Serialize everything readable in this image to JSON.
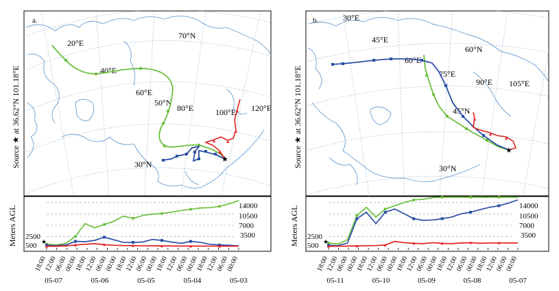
{
  "panels": [
    {
      "id": "a",
      "label": "a.",
      "source_label": "Source ★ at 36.62°N 101.18°E",
      "map_labels": [
        "20°E",
        "40°E",
        "60°E",
        "70°N",
        "50°N",
        "80°E",
        "100°E",
        "120°E",
        "30°N"
      ],
      "y_axis_label": "Meters AGL",
      "height_ticks": [
        "14000",
        "10500",
        "7000",
        "3500"
      ],
      "left_height_ticks": [
        "2500",
        "500"
      ],
      "time_ticks": [
        "18:00",
        "12:00",
        "06:00",
        "00:00",
        "18:00",
        "12:00",
        "06:00",
        "00:00",
        "18:00",
        "12:00",
        "06:00",
        "00:00",
        "18:00",
        "12:00",
        "06:00",
        "00:00",
        "18:00",
        "12:00",
        "06:00",
        "00:00"
      ],
      "date_ticks": [
        "05-07",
        "05-06",
        "05-05",
        "05-04",
        "05-03"
      ],
      "series": [
        {
          "name": "green",
          "color": "#6abf3c",
          "height_values": [
            1200,
            900,
            1400,
            3500,
            7500,
            6200,
            7200,
            8200,
            9800,
            9100,
            10000,
            10400,
            10600,
            11000,
            11500,
            11900,
            12300,
            12400,
            12800,
            13600,
            14600
          ]
        },
        {
          "name": "blue",
          "color": "#2b4ea6",
          "height_values": [
            800,
            700,
            900,
            2000,
            1900,
            2300,
            3300,
            2500,
            1700,
            1700,
            1800,
            2600,
            2300,
            1800,
            1400,
            2000,
            1700,
            1100,
            900,
            800,
            600
          ]
        },
        {
          "name": "red",
          "color": "#e02020",
          "height_values": [
            500,
            500,
            600,
            900,
            1100,
            1300,
            1000,
            800,
            700,
            700,
            650,
            600,
            600,
            580,
            560,
            550,
            550,
            540,
            530,
            520,
            510
          ]
        }
      ]
    },
    {
      "id": "b",
      "label": "b.",
      "source_label": "Source ★ at 36.62°N 101.18°E",
      "map_labels": [
        "30°E",
        "45°E",
        "60°E",
        "60°N",
        "75°E",
        "90°E",
        "105°E",
        "45°N",
        "30°N"
      ],
      "y_axis_label": "Meters AGL",
      "height_ticks": [
        "14000",
        "10500",
        "7000",
        "3500"
      ],
      "left_height_ticks": [
        "2500",
        "500"
      ],
      "time_ticks": [
        "18:00",
        "12:00",
        "06:00",
        "00:00",
        "18:00",
        "12:00",
        "06:00",
        "00:00",
        "18:00",
        "12:00",
        "06:00",
        "00:00",
        "18:00",
        "12:00",
        "06:00",
        "00:00",
        "18:00",
        "12:00",
        "06:00",
        "00:00"
      ],
      "date_ticks": [
        "05-11",
        "05-10",
        "05-09",
        "05-08",
        "05-07"
      ],
      "series": [
        {
          "name": "green",
          "color": "#6abf3c",
          "height_values": [
            1500,
            1200,
            2500,
            10000,
            12500,
            9500,
            12000,
            13000,
            14000,
            14800,
            15000,
            15500,
            15800,
            16000,
            16200,
            16300,
            16400,
            16500,
            16500,
            16500,
            16500
          ]
        },
        {
          "name": "blue",
          "color": "#2b4ea6",
          "height_values": [
            800,
            700,
            1500,
            9000,
            11000,
            7500,
            11000,
            12000,
            10500,
            9000,
            8500,
            8600,
            9000,
            9500,
            10500,
            11000,
            11800,
            12500,
            13000,
            13800,
            14800
          ]
        },
        {
          "name": "red",
          "color": "#e02020",
          "height_values": [
            500,
            500,
            550,
            600,
            650,
            700,
            900,
            2000,
            1600,
            1400,
            1300,
            1600,
            1400,
            1300,
            1500,
            1600,
            1400,
            1500,
            1550,
            1500,
            1500
          ]
        }
      ]
    }
  ]
}
